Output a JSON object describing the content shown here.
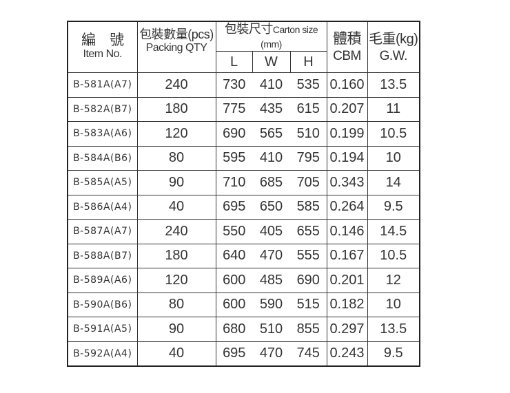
{
  "headers": {
    "item_zh": "編　號",
    "item_en": "Item No.",
    "qty_zh": "包裝數量(pcs)",
    "qty_en": "Packing QTY",
    "carton_zh": "包裝尺寸",
    "carton_en": "Carton size (mm)",
    "l": "L",
    "w": "W",
    "h": "H",
    "cbm_zh": "體積",
    "cbm_en": "CBM",
    "gw_zh": "毛重(kg)",
    "gw_en": "G.W."
  },
  "rows": [
    {
      "item": "B-581A(A7)",
      "qty": "240",
      "l": "730",
      "w": "410",
      "h": "535",
      "cbm": "0.160",
      "gw": "13.5"
    },
    {
      "item": "B-582A(B7)",
      "qty": "180",
      "l": "775",
      "w": "435",
      "h": "615",
      "cbm": "0.207",
      "gw": "11"
    },
    {
      "item": "B-583A(A6)",
      "qty": "120",
      "l": "690",
      "w": "565",
      "h": "510",
      "cbm": "0.199",
      "gw": "10.5"
    },
    {
      "item": "B-584A(B6)",
      "qty": "80",
      "l": "595",
      "w": "410",
      "h": "795",
      "cbm": "0.194",
      "gw": "10"
    },
    {
      "item": "B-585A(A5)",
      "qty": "90",
      "l": "710",
      "w": "685",
      "h": "705",
      "cbm": "0.343",
      "gw": "14"
    },
    {
      "item": "B-586A(A4)",
      "qty": "40",
      "l": "695",
      "w": "650",
      "h": "585",
      "cbm": "0.264",
      "gw": "9.5"
    },
    {
      "item": "B-587A(A7)",
      "qty": "240",
      "l": "550",
      "w": "405",
      "h": "655",
      "cbm": "0.146",
      "gw": "14.5"
    },
    {
      "item": "B-588A(B7)",
      "qty": "180",
      "l": "640",
      "w": "470",
      "h": "555",
      "cbm": "0.167",
      "gw": "10.5"
    },
    {
      "item": "B-589A(A6)",
      "qty": "120",
      "l": "600",
      "w": "485",
      "h": "690",
      "cbm": "0.201",
      "gw": "12"
    },
    {
      "item": "B-590A(B6)",
      "qty": "80",
      "l": "600",
      "w": "590",
      "h": "515",
      "cbm": "0.182",
      "gw": "10"
    },
    {
      "item": "B-591A(A5)",
      "qty": "90",
      "l": "680",
      "w": "510",
      "h": "855",
      "cbm": "0.297",
      "gw": "13.5"
    },
    {
      "item": "B-592A(A4)",
      "qty": "40",
      "l": "695",
      "w": "470",
      "h": "745",
      "cbm": "0.243",
      "gw": "9.5"
    }
  ]
}
